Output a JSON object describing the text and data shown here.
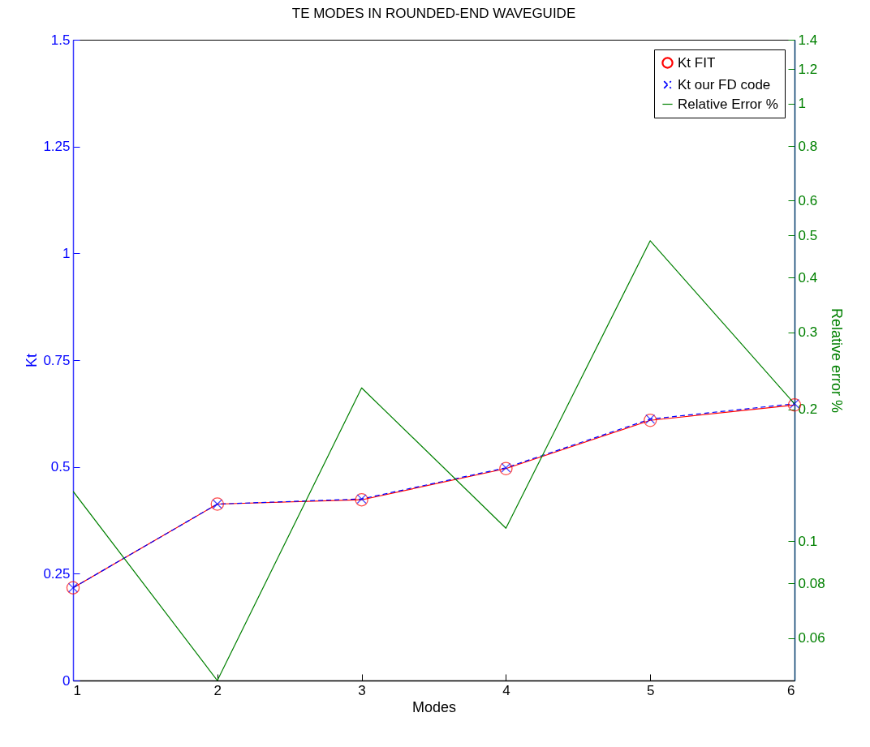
{
  "chart_data": {
    "type": "line",
    "title": "TE MODES IN ROUNDED-END WAVEGUIDE",
    "xlabel": "Modes",
    "ylabel": "Kt",
    "y2label": "Relative error %",
    "x": [
      1,
      2,
      3,
      4,
      5,
      6
    ],
    "xlim": [
      1,
      6
    ],
    "xticks": [
      1,
      2,
      3,
      4,
      5,
      6
    ],
    "ylim": [
      0,
      1.5
    ],
    "yticks": [
      0,
      0.25,
      0.5,
      0.75,
      1,
      1.25,
      1.5
    ],
    "y2lim": [
      0.048,
      1.4
    ],
    "y2ticks": [
      0.06,
      0.08,
      0.1,
      0.2,
      0.3,
      0.4,
      0.5,
      0.6,
      0.8,
      1,
      1.2,
      1.4
    ],
    "log": "y2",
    "grid": false,
    "legend": "top right",
    "series": [
      {
        "name": "Kt FIT",
        "color": "#ff0000",
        "marker": "circle",
        "line_style": "solid",
        "values": [
          0.217,
          0.413,
          0.423,
          0.496,
          0.609,
          0.645
        ]
      },
      {
        "name": "Kt our FD code",
        "color": "#0000ff",
        "marker": "cross",
        "line_style": "dashed",
        "values": [
          0.217,
          0.413,
          0.425,
          0.498,
          0.612,
          0.648
        ]
      },
      {
        "name": "Relative Error %",
        "color": "#008000",
        "marker": "none",
        "line_style": "solid",
        "axis": "y2",
        "values": [
          0.13,
          0.048,
          0.224,
          0.107,
          0.486,
          0.206
        ]
      }
    ]
  }
}
